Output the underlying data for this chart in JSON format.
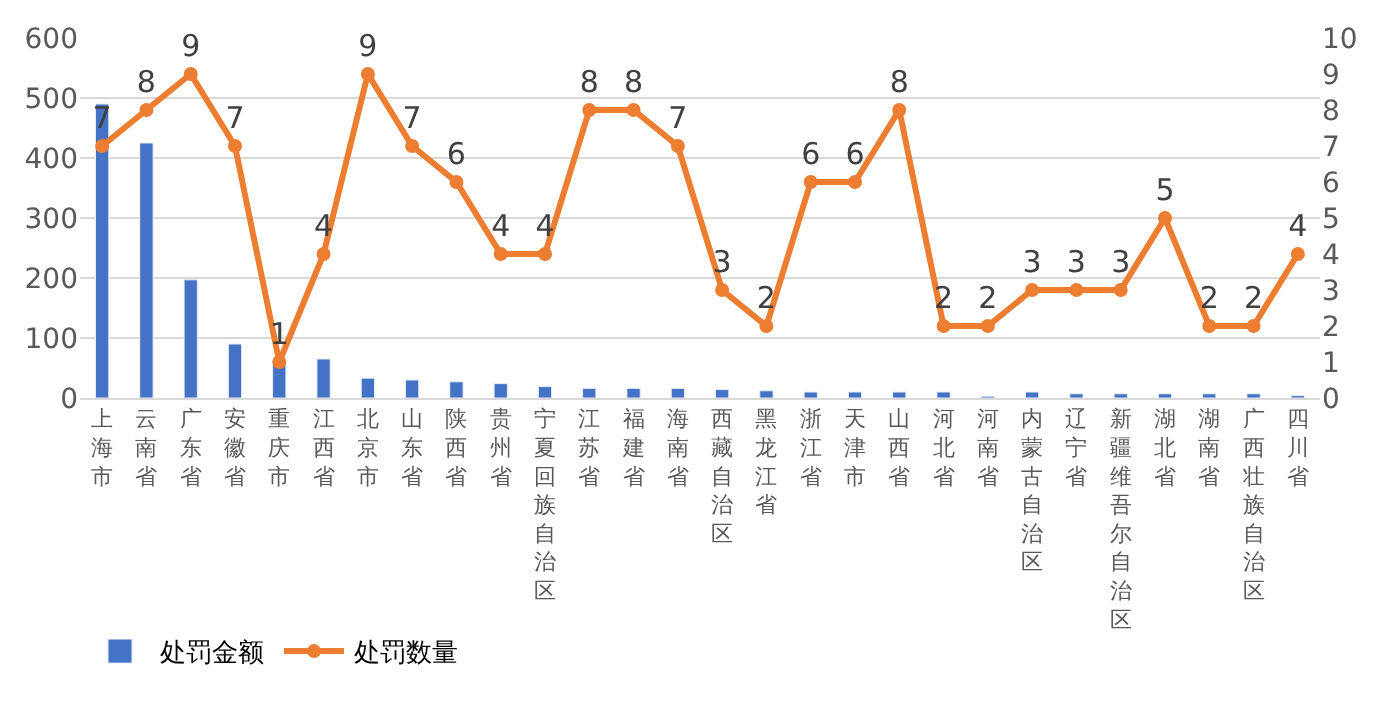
{
  "chart_data": {
    "type": "bar",
    "categories": [
      "上海市",
      "云南省",
      "广东省",
      "安徽省",
      "重庆市",
      "江西省",
      "北京市",
      "山东省",
      "陕西省",
      "贵州省",
      "宁夏回族自治区",
      "江苏省",
      "福建省",
      "海南省",
      "西藏自治区",
      "黑龙江省",
      "浙江省",
      "天津市",
      "山西省",
      "河北省",
      "河南省",
      "内蒙古自治区",
      "辽宁省",
      "新疆维吾尔自治区",
      "湖北省",
      "湖南省",
      "广西壮族自治区",
      "四川省"
    ],
    "series": [
      {
        "name": "处罚金额",
        "color": "#4472c4",
        "values": [
          490,
          425,
          197,
          90,
          62,
          65,
          33,
          30,
          27,
          24,
          19,
          16,
          16,
          16,
          14,
          12,
          10,
          10,
          10,
          10,
          3,
          10,
          7,
          7,
          7,
          7,
          7,
          4
        ]
      },
      {
        "name": "处罚数量",
        "type": "line",
        "axis": "y2",
        "color": "#ed7d31",
        "marker": "circle",
        "values": [
          7,
          8,
          9,
          7,
          1,
          4,
          9,
          7,
          6,
          4,
          4,
          8,
          8,
          7,
          3,
          2,
          6,
          6,
          8,
          2,
          2,
          3,
          3,
          3,
          5,
          2,
          2,
          4
        ],
        "value_labels": [
          "7",
          "8",
          "9",
          "7",
          "1",
          "4",
          "9",
          "7",
          "6",
          "4",
          "4",
          "8",
          "8",
          "7",
          "3",
          "2",
          "6",
          "6",
          "8",
          "2",
          "2",
          "3",
          "3",
          "3",
          "5",
          "2",
          "2",
          "4"
        ]
      }
    ],
    "ylim": [
      0,
      600
    ],
    "yticks": [
      0,
      100,
      200,
      300,
      400,
      500,
      600
    ],
    "y2lim": [
      0,
      10
    ],
    "y2ticks": [
      0,
      1,
      2,
      3,
      4,
      5,
      6,
      7,
      8,
      9,
      10
    ],
    "grid": "y",
    "legend": "bottom left"
  }
}
